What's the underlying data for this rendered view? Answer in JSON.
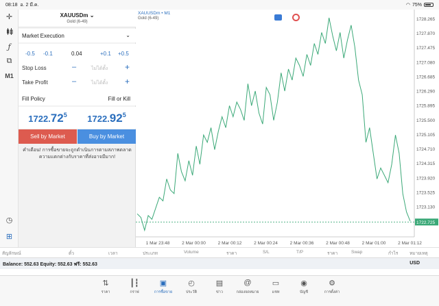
{
  "status": {
    "time": "08:18",
    "date": "อ. 2 มี.ค.",
    "battery": "75%"
  },
  "toolbar": {
    "timeframe": "M1"
  },
  "order": {
    "symbol": "XAUUSDm",
    "symbol_desc": "Gold (6-49)",
    "execution": "Market Execution",
    "vol_minus_big": "-0.5",
    "vol_minus_small": "-0.1",
    "volume": "0.04",
    "vol_plus_small": "+0.1",
    "vol_plus_big": "+0.5",
    "stop_loss_label": "Stop Loss",
    "take_profit_label": "Take Profit",
    "not_set": "ไม่ได้ตั้ง",
    "minus": "–",
    "plus": "+",
    "fill_policy_label": "Fill Policy",
    "fill_policy_value": "Fill or Kill",
    "bid_main": "1722.",
    "bid_big": "72",
    "bid_sup": "5",
    "ask_main": "1722.",
    "ask_big": "92",
    "ask_sup": "5",
    "sell_label": "Sell by Market",
    "buy_label": "Buy by Market",
    "warning": "คำเตือน! การซื้อขายจะถูกดำเนินการตามสภาพตลาด ความแตกต่างกับราคาที่ส่งอาจมีมาก!"
  },
  "chart": {
    "title": "XAUUSDm • M1",
    "subtitle": "Gold (6-49)",
    "current_price_label": "1722.725"
  },
  "chart_data": {
    "type": "line",
    "y_ticks": [
      "1728.265",
      "1727.870",
      "1727.475",
      "1727.080",
      "1726.685",
      "1726.290",
      "1725.895",
      "1725.500",
      "1725.105",
      "1724.710",
      "1724.315",
      "1723.920",
      "1723.525",
      "1723.130"
    ],
    "x_ticks": [
      "1 Mar 23:48",
      "2 Mar 00:00",
      "2 Mar 00:12",
      "2 Mar 00:24",
      "2 Mar 00:36",
      "2 Mar 00:48",
      "2 Mar 01:00",
      "2 Mar 01:12"
    ],
    "ylim": [
      1722.6,
      1728.45
    ],
    "current_price": 1722.725,
    "series": [
      {
        "values": [
          1722.95,
          1722.85,
          1722.5,
          1722.9,
          1722.8,
          1723.1,
          1723.4,
          1723.3,
          1723.9,
          1723.6,
          1723.5,
          1724.6,
          1724.1,
          1723.85,
          1724.4,
          1724.0,
          1724.8,
          1724.3,
          1725.1,
          1724.9,
          1725.3,
          1724.7,
          1725.2,
          1725.6,
          1725.3,
          1725.9,
          1725.6,
          1726.0,
          1725.8,
          1725.5,
          1726.5,
          1725.9,
          1726.3,
          1725.7,
          1725.4,
          1726.4,
          1726.2,
          1725.5,
          1726.0,
          1726.8,
          1726.3,
          1726.9,
          1726.6,
          1727.2,
          1727.0,
          1726.7,
          1727.3,
          1727.0,
          1727.6,
          1727.3,
          1727.9,
          1727.6,
          1728.3,
          1727.8,
          1727.4,
          1727.9,
          1727.2,
          1727.7,
          1728.1,
          1727.5,
          1726.6,
          1726.2,
          1724.9,
          1725.3,
          1724.6,
          1723.9,
          1724.2,
          1724.0,
          1723.8,
          1724.3,
          1725.1,
          1724.6,
          1723.5,
          1723.0,
          1722.75
        ]
      }
    ]
  },
  "trade_columns": [
    "สัญลักษณ์",
    "ตั๋ว",
    "เวลา",
    "ประเภท",
    "Volume",
    "ราคา",
    "S/L",
    "T/P",
    "ราคา",
    "Swap",
    "กำไร",
    "หมายเหตุ"
  ],
  "balance": {
    "text": "Balance: 552.63 Equity: 552.63 ฟรี: 552.63",
    "currency": "USD"
  },
  "nav": [
    "ราคา",
    "กราฟ",
    "การซื้อขาย",
    "ประวัติ",
    "ข่าว",
    "กล่องจดหมาย",
    "แชท",
    "บัญชี",
    "การตั้งค่า"
  ]
}
